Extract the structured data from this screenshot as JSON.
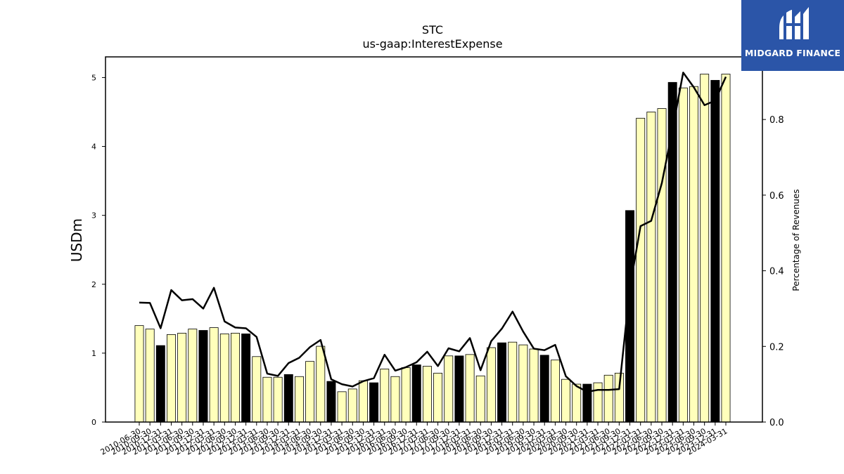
{
  "brand": {
    "name": "MIDGARD FINANCE",
    "background": "#2b55a8",
    "text_color": "#ffffff"
  },
  "chart_data": {
    "type": "bar",
    "title": "STC",
    "subtitle": "us-gaap:InterestExpense",
    "ylabel": "USDm",
    "ylabel_right": "Percentage of Revenues",
    "ylim": [
      0,
      5.3
    ],
    "ylim_right": [
      0,
      0.9656
    ],
    "yticks": [
      0,
      1,
      2,
      3,
      4,
      5
    ],
    "yticks_right": [
      0.0,
      0.2,
      0.4,
      0.6,
      0.8
    ],
    "bar_colors": {
      "quarter": "#ffffbb",
      "year_end": "#000000",
      "edge": "#000000"
    },
    "line_color": "#000000",
    "categories": [
      "2010-06-30",
      "2010-09-30",
      "2010-12-31",
      "2011-03-31",
      "2011-06-30",
      "2011-09-30",
      "2011-12-31",
      "2012-03-31",
      "2012-06-30",
      "2012-09-30",
      "2012-12-31",
      "2013-03-31",
      "2013-06-30",
      "2013-09-30",
      "2013-12-31",
      "2014-03-31",
      "2014-06-30",
      "2014-09-30",
      "2014-12-31",
      "2015-03-31",
      "2015-06-30",
      "2015-09-30",
      "2015-12-31",
      "2016-03-31",
      "2016-06-30",
      "2016-09-30",
      "2016-12-31",
      "2017-03-31",
      "2017-06-30",
      "2017-09-30",
      "2017-12-31",
      "2018-03-31",
      "2018-06-30",
      "2018-09-30",
      "2018-12-31",
      "2019-03-31",
      "2019-06-30",
      "2019-09-30",
      "2019-12-31",
      "2020-03-31",
      "2020-06-30",
      "2020-09-30",
      "2020-12-31",
      "2021-03-31",
      "2021-06-30",
      "2021-09-30",
      "2021-12-31",
      "2022-03-31",
      "2022-06-30",
      "2022-09-30",
      "2022-12-31",
      "2023-03-31",
      "2023-06-30",
      "2023-09-30",
      "2023-12-31",
      "2024-03-31"
    ],
    "tick_labels": [
      "2010-06-30",
      "2010-09-30",
      "2010-12-31",
      "2011-03-31",
      "2011-06-30",
      "2011-09-30",
      "2011-12-31",
      "2012-03-31",
      "2012-06-30",
      "2012-09-30",
      "2012-12-31",
      "2013-03-31",
      "2013-06-30",
      "2013-09-30",
      "2013-12-31",
      "2014-03-31",
      "2014-06-30",
      "2014-09-30",
      "2014-12-31",
      "2015-03-31",
      "2015-06-30",
      "2015-09-30",
      "2015-12-31",
      "2016-03-31",
      "2016-06-30",
      "2016-09-30",
      "2016-12-31",
      "2017-03-31",
      "2017-06-30",
      "2017-09-30",
      "2017-12-31",
      "2018-03-31",
      "2018-06-30",
      "2018-09-30",
      "2018-12-31",
      "2019-03-31",
      "2019-06-30",
      "2019-09-30",
      "2019-12-31",
      "2020-03-31",
      "2020-06-30",
      "2020-09-30",
      "2020-12-31",
      "2021-03-31",
      "2021-06-30",
      "2021-09-30",
      "2021-12-31",
      "2022-03-31",
      "2022-06-30",
      "2022-09-30",
      "2022-12-31",
      "2023-03-31",
      "2023-06-30",
      "2023-09-30",
      "2023-12-31",
      "2024-03-31"
    ],
    "series": [
      {
        "axis": "left",
        "mark": "bar",
        "values": [
          1.4,
          1.35,
          1.11,
          1.27,
          1.29,
          1.35,
          1.33,
          1.37,
          1.28,
          1.29,
          1.28,
          0.95,
          0.65,
          0.65,
          0.69,
          0.66,
          0.88,
          1.1,
          0.59,
          0.44,
          0.48,
          0.6,
          0.57,
          0.77,
          0.66,
          0.79,
          0.83,
          0.81,
          0.71,
          0.96,
          0.96,
          0.98,
          0.67,
          1.08,
          1.15,
          1.16,
          1.12,
          1.06,
          0.97,
          0.9,
          0.62,
          0.55,
          0.55,
          0.57,
          0.68,
          0.71,
          3.07,
          4.41,
          4.5,
          4.55,
          4.93,
          4.85,
          4.87,
          5.05,
          4.96,
          5.05
        ]
      },
      {
        "axis": "right",
        "mark": "line",
        "values": [
          0.316,
          0.315,
          0.248,
          0.349,
          0.322,
          0.325,
          0.3,
          0.355,
          0.266,
          0.25,
          0.248,
          0.225,
          0.128,
          0.122,
          0.156,
          0.17,
          0.198,
          0.217,
          0.113,
          0.1,
          0.094,
          0.108,
          0.116,
          0.178,
          0.136,
          0.145,
          0.158,
          0.186,
          0.148,
          0.195,
          0.187,
          0.222,
          0.137,
          0.214,
          0.247,
          0.292,
          0.239,
          0.194,
          0.19,
          0.204,
          0.121,
          0.095,
          0.08,
          0.085,
          0.085,
          0.087,
          0.355,
          0.518,
          0.532,
          0.632,
          0.774,
          0.924,
          0.885,
          0.838,
          0.85,
          0.913
        ]
      }
    ],
    "year_end_bars": [
      2,
      6,
      10,
      14,
      18,
      22,
      26,
      30,
      34,
      38,
      42,
      46,
      50,
      54
    ],
    "grid": false,
    "legend": "none"
  }
}
